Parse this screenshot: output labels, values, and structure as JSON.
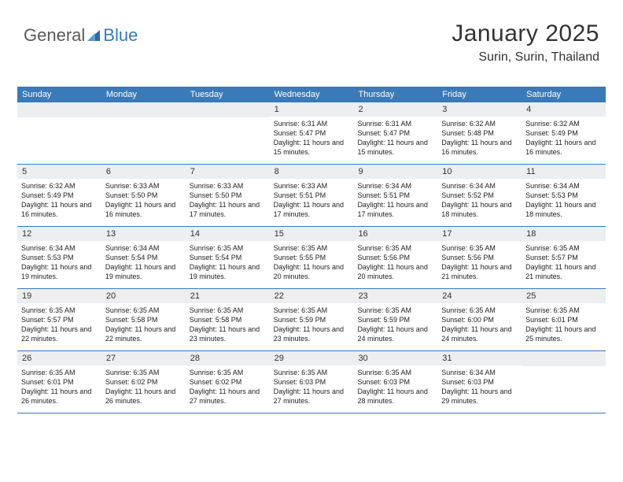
{
  "logo": {
    "text1": "General",
    "text2": "Blue",
    "icon_color": "#2f6aa8"
  },
  "title": "January 2025",
  "location": "Surin, Surin, Thailand",
  "colors": {
    "header_bg": "#3a7ab8",
    "header_text": "#ffffff",
    "daynum_bg": "#eceef0",
    "row_border": "#3a7ab8",
    "text": "#222222",
    "background": "#ffffff"
  },
  "day_headers": [
    "Sunday",
    "Monday",
    "Tuesday",
    "Wednesday",
    "Thursday",
    "Friday",
    "Saturday"
  ],
  "weeks": [
    [
      null,
      null,
      null,
      {
        "n": "1",
        "sr": "6:31 AM",
        "ss": "5:47 PM",
        "dl": "11 hours and 15 minutes."
      },
      {
        "n": "2",
        "sr": "6:31 AM",
        "ss": "5:47 PM",
        "dl": "11 hours and 15 minutes."
      },
      {
        "n": "3",
        "sr": "6:32 AM",
        "ss": "5:48 PM",
        "dl": "11 hours and 16 minutes."
      },
      {
        "n": "4",
        "sr": "6:32 AM",
        "ss": "5:49 PM",
        "dl": "11 hours and 16 minutes."
      }
    ],
    [
      {
        "n": "5",
        "sr": "6:32 AM",
        "ss": "5:49 PM",
        "dl": "11 hours and 16 minutes."
      },
      {
        "n": "6",
        "sr": "6:33 AM",
        "ss": "5:50 PM",
        "dl": "11 hours and 16 minutes."
      },
      {
        "n": "7",
        "sr": "6:33 AM",
        "ss": "5:50 PM",
        "dl": "11 hours and 17 minutes."
      },
      {
        "n": "8",
        "sr": "6:33 AM",
        "ss": "5:51 PM",
        "dl": "11 hours and 17 minutes."
      },
      {
        "n": "9",
        "sr": "6:34 AM",
        "ss": "5:51 PM",
        "dl": "11 hours and 17 minutes."
      },
      {
        "n": "10",
        "sr": "6:34 AM",
        "ss": "5:52 PM",
        "dl": "11 hours and 18 minutes."
      },
      {
        "n": "11",
        "sr": "6:34 AM",
        "ss": "5:53 PM",
        "dl": "11 hours and 18 minutes."
      }
    ],
    [
      {
        "n": "12",
        "sr": "6:34 AM",
        "ss": "5:53 PM",
        "dl": "11 hours and 19 minutes."
      },
      {
        "n": "13",
        "sr": "6:34 AM",
        "ss": "5:54 PM",
        "dl": "11 hours and 19 minutes."
      },
      {
        "n": "14",
        "sr": "6:35 AM",
        "ss": "5:54 PM",
        "dl": "11 hours and 19 minutes."
      },
      {
        "n": "15",
        "sr": "6:35 AM",
        "ss": "5:55 PM",
        "dl": "11 hours and 20 minutes."
      },
      {
        "n": "16",
        "sr": "6:35 AM",
        "ss": "5:56 PM",
        "dl": "11 hours and 20 minutes."
      },
      {
        "n": "17",
        "sr": "6:35 AM",
        "ss": "5:56 PM",
        "dl": "11 hours and 21 minutes."
      },
      {
        "n": "18",
        "sr": "6:35 AM",
        "ss": "5:57 PM",
        "dl": "11 hours and 21 minutes."
      }
    ],
    [
      {
        "n": "19",
        "sr": "6:35 AM",
        "ss": "5:57 PM",
        "dl": "11 hours and 22 minutes."
      },
      {
        "n": "20",
        "sr": "6:35 AM",
        "ss": "5:58 PM",
        "dl": "11 hours and 22 minutes."
      },
      {
        "n": "21",
        "sr": "6:35 AM",
        "ss": "5:58 PM",
        "dl": "11 hours and 23 minutes."
      },
      {
        "n": "22",
        "sr": "6:35 AM",
        "ss": "5:59 PM",
        "dl": "11 hours and 23 minutes."
      },
      {
        "n": "23",
        "sr": "6:35 AM",
        "ss": "5:59 PM",
        "dl": "11 hours and 24 minutes."
      },
      {
        "n": "24",
        "sr": "6:35 AM",
        "ss": "6:00 PM",
        "dl": "11 hours and 24 minutes."
      },
      {
        "n": "25",
        "sr": "6:35 AM",
        "ss": "6:01 PM",
        "dl": "11 hours and 25 minutes."
      }
    ],
    [
      {
        "n": "26",
        "sr": "6:35 AM",
        "ss": "6:01 PM",
        "dl": "11 hours and 26 minutes."
      },
      {
        "n": "27",
        "sr": "6:35 AM",
        "ss": "6:02 PM",
        "dl": "11 hours and 26 minutes."
      },
      {
        "n": "28",
        "sr": "6:35 AM",
        "ss": "6:02 PM",
        "dl": "11 hours and 27 minutes."
      },
      {
        "n": "29",
        "sr": "6:35 AM",
        "ss": "6:03 PM",
        "dl": "11 hours and 27 minutes."
      },
      {
        "n": "30",
        "sr": "6:35 AM",
        "ss": "6:03 PM",
        "dl": "11 hours and 28 minutes."
      },
      {
        "n": "31",
        "sr": "6:34 AM",
        "ss": "6:03 PM",
        "dl": "11 hours and 29 minutes."
      },
      null
    ]
  ],
  "labels": {
    "sunrise": "Sunrise:",
    "sunset": "Sunset:",
    "daylight": "Daylight:"
  }
}
